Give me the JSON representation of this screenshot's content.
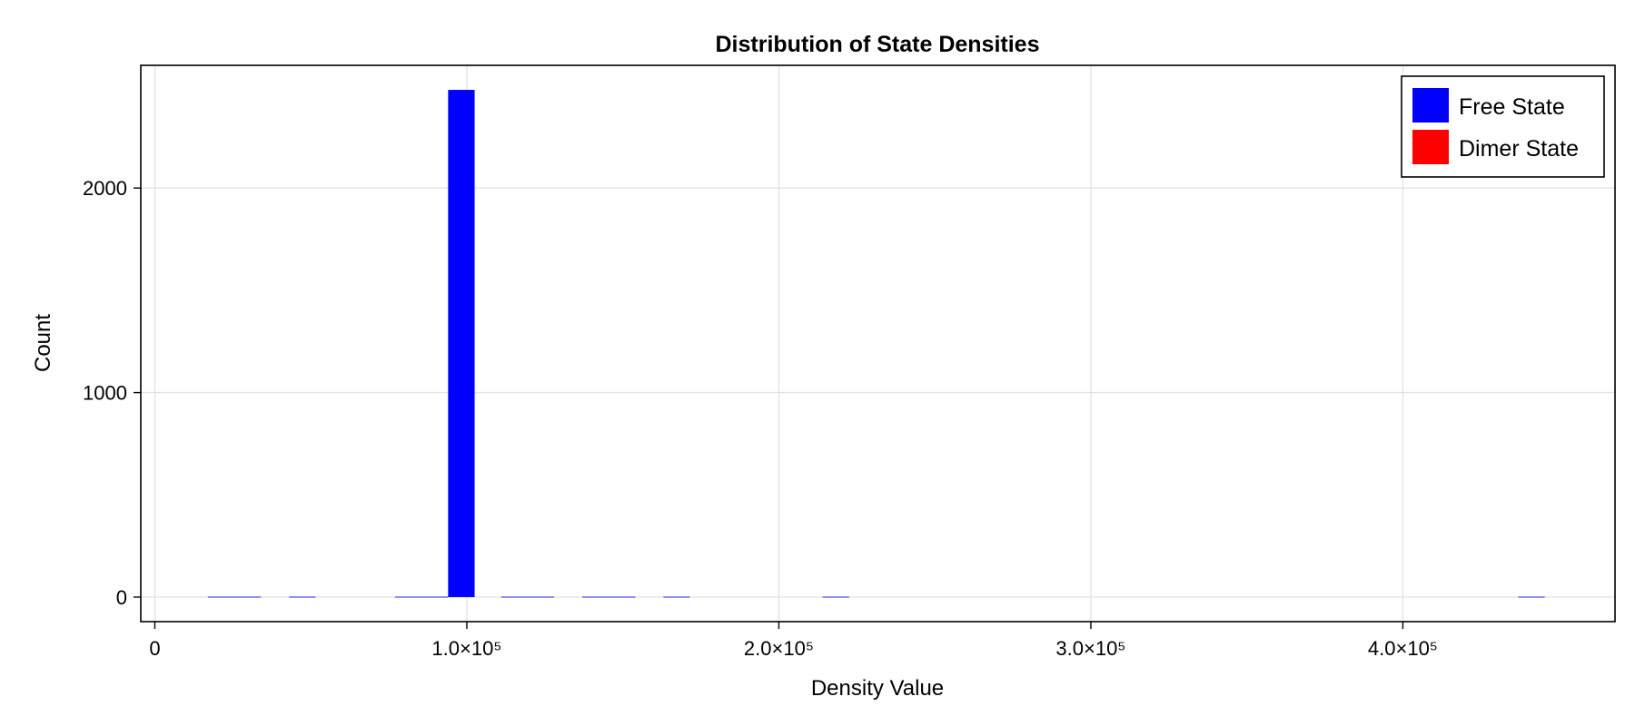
{
  "chart_data": {
    "type": "bar",
    "title": "Distribution of State Densities",
    "xlabel": "Density Value",
    "ylabel": "Count",
    "xlim": [
      -4500,
      468000
    ],
    "ylim": [
      -120,
      2600
    ],
    "grid": true,
    "legend_placement": "top-right",
    "x_ticks": [
      {
        "value": 0,
        "label": "0"
      },
      {
        "value": 100000,
        "label": "1.0×10⁵"
      },
      {
        "value": 200000,
        "label": "2.0×10⁵"
      },
      {
        "value": 300000,
        "label": "3.0×10⁵"
      },
      {
        "value": 400000,
        "label": "4.0×10⁵"
      }
    ],
    "y_ticks": [
      {
        "value": 0,
        "label": "0"
      },
      {
        "value": 1000,
        "label": "1000"
      },
      {
        "value": 2000,
        "label": "2000"
      }
    ],
    "bin_width": 8500,
    "series": [
      {
        "name": "Free State",
        "color": "#0000ff",
        "bins": [
          {
            "x0": 17000,
            "count": 1
          },
          {
            "x0": 25500,
            "count": 1
          },
          {
            "x0": 43000,
            "count": 1
          },
          {
            "x0": 77000,
            "count": 1
          },
          {
            "x0": 85500,
            "count": 1
          },
          {
            "x0": 94000,
            "count": 2480
          },
          {
            "x0": 111000,
            "count": 3
          },
          {
            "x0": 119500,
            "count": 3
          },
          {
            "x0": 137000,
            "count": 1
          },
          {
            "x0": 145500,
            "count": 1
          },
          {
            "x0": 163000,
            "count": 1
          },
          {
            "x0": 214000,
            "count": 1
          },
          {
            "x0": 437000,
            "count": 1
          }
        ]
      },
      {
        "name": "Dimer State",
        "color": "#ff0000",
        "bins": []
      }
    ]
  }
}
